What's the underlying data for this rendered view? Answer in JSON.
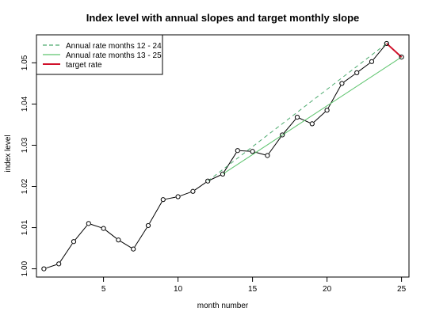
{
  "chart_data": {
    "type": "line",
    "title": "Index level with annual slopes and target monthly slope",
    "xlabel": "month number",
    "ylabel": "index level",
    "xlim": [
      0.5,
      25.5
    ],
    "ylim": [
      0.998,
      1.0568
    ],
    "x_ticks": [
      5,
      10,
      15,
      20,
      25
    ],
    "y_ticks": [
      1.0,
      1.01,
      1.02,
      1.03,
      1.04,
      1.05
    ],
    "y_tick_labels": [
      "1.00",
      "1.01",
      "1.02",
      "1.03",
      "1.04",
      "1.05"
    ],
    "legend_position": "top-left",
    "grid": false,
    "series": [
      {
        "style": "points-and-line",
        "color": "#000000",
        "points": [
          [
            1,
            1.0
          ],
          [
            2,
            1.0012
          ],
          [
            3,
            1.0066
          ],
          [
            4,
            1.011
          ],
          [
            5,
            1.0098
          ],
          [
            6,
            1.007
          ],
          [
            7,
            1.0048
          ],
          [
            8,
            1.0105
          ],
          [
            9,
            1.0168
          ],
          [
            10,
            1.0175
          ],
          [
            11,
            1.0188
          ],
          [
            12,
            1.0213
          ],
          [
            13,
            1.023
          ],
          [
            14,
            1.0287
          ],
          [
            15,
            1.0285
          ],
          [
            16,
            1.0275
          ],
          [
            17,
            1.0325
          ],
          [
            18,
            1.0368
          ],
          [
            19,
            1.0352
          ],
          [
            20,
            1.0385
          ],
          [
            21,
            1.045
          ],
          [
            22,
            1.0476
          ],
          [
            23,
            1.0503
          ],
          [
            24,
            1.0547
          ],
          [
            25,
            1.0514
          ]
        ]
      },
      {
        "name": "Annual rate months 12 - 24",
        "style": "dashed",
        "color": "#4daa6e",
        "points": [
          [
            12,
            1.0213
          ],
          [
            24,
            1.0547
          ]
        ]
      },
      {
        "name": "Annual rate months 13 - 25",
        "style": "solid",
        "color": "#5ec46e",
        "points": [
          [
            13,
            1.023
          ],
          [
            25,
            1.0514
          ]
        ]
      },
      {
        "name": "target rate",
        "style": "solid-thick",
        "color": "#d0102a",
        "points": [
          [
            24,
            1.0547
          ],
          [
            25,
            1.0514
          ]
        ]
      }
    ]
  }
}
